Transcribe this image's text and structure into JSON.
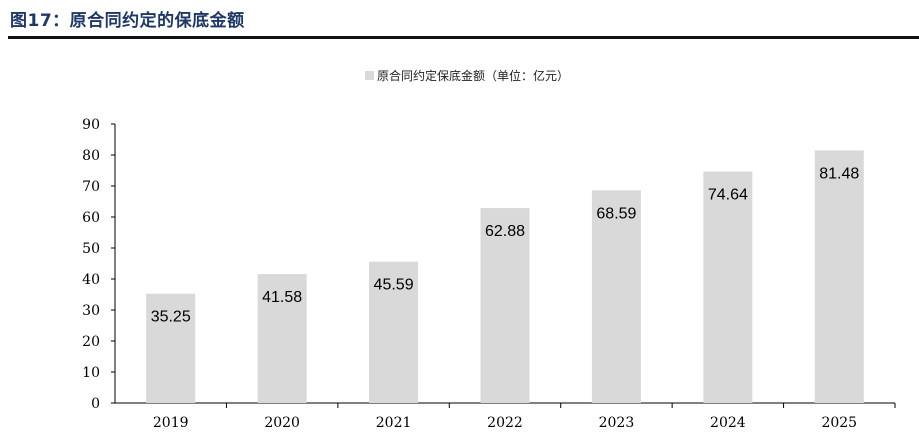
{
  "page": {
    "figure_title": "图17：原合同约定的保底金额"
  },
  "chart_data": {
    "type": "bar",
    "categories": [
      "2019",
      "2020",
      "2021",
      "2022",
      "2023",
      "2024",
      "2025"
    ],
    "series": [
      {
        "name": "原合同约定保底金额（单位：亿元）",
        "values": [
          35.25,
          41.58,
          45.59,
          62.88,
          68.59,
          74.64,
          81.48
        ],
        "color": "#d9d9d9"
      }
    ],
    "data_labels": [
      "35.25",
      "41.58",
      "45.59",
      "62.88",
      "68.59",
      "74.64",
      "81.48"
    ],
    "yticks": [
      "0",
      "10",
      "20",
      "30",
      "40",
      "50",
      "60",
      "70",
      "80",
      "90"
    ],
    "ylim": [
      0,
      90
    ],
    "title": "",
    "xlabel": "",
    "ylabel": "",
    "grid": false,
    "legend_position": "top-center"
  }
}
